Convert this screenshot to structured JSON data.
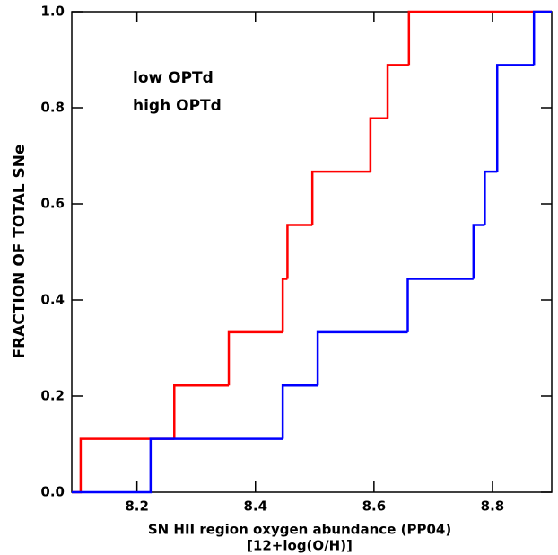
{
  "chart_data": {
    "type": "step",
    "xlabel": "SN HII region oxygen abundance (PP04)",
    "xlabel2": "[12+log(O/H)]",
    "ylabel": "FRACTION OF TOTAL SNe",
    "xlim": [
      8.09,
      8.9
    ],
    "ylim": [
      0,
      1
    ],
    "xticks": [
      8.2,
      8.4,
      8.6,
      8.8
    ],
    "yticks": [
      {
        "value": 0,
        "label": "0.0"
      },
      {
        "value": 0.2,
        "label": "0.2"
      },
      {
        "value": 0.4,
        "label": "0.4"
      },
      {
        "value": 0.6,
        "label": "0.6"
      },
      {
        "value": 0.8,
        "label": "0.8"
      },
      {
        "value": 1,
        "label": "1.0"
      }
    ],
    "series": [
      {
        "name": "low OPTd",
        "color": "#ff0000",
        "x": [
          8.105,
          8.263,
          8.355,
          8.446,
          8.454,
          8.496,
          8.594,
          8.623,
          8.659
        ],
        "values": [
          0.111,
          0.222,
          0.333,
          0.444,
          0.556,
          0.667,
          0.778,
          0.889,
          1.0
        ]
      },
      {
        "name": "high OPTd",
        "color": "#0000ff",
        "x": [
          8.223,
          8.446,
          8.505,
          8.657,
          8.768,
          8.787,
          8.808,
          8.87
        ],
        "values": [
          0.111,
          0.222,
          0.333,
          0.444,
          0.556,
          0.667,
          0.889,
          1.0
        ]
      }
    ]
  }
}
